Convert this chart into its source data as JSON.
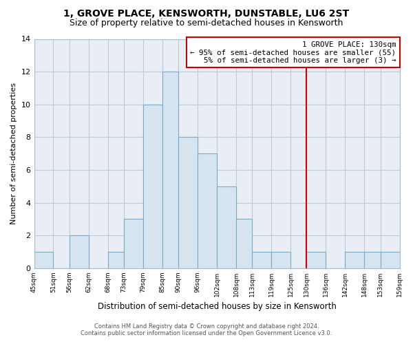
{
  "title": "1, GROVE PLACE, KENSWORTH, DUNSTABLE, LU6 2ST",
  "subtitle": "Size of property relative to semi-detached houses in Kensworth",
  "xlabel": "Distribution of semi-detached houses by size in Kensworth",
  "ylabel": "Number of semi-detached properties",
  "bin_edges": [
    45,
    51,
    56,
    62,
    68,
    73,
    79,
    85,
    90,
    96,
    102,
    108,
    113,
    119,
    125,
    130,
    136,
    142,
    148,
    153,
    159
  ],
  "bin_labels": [
    "45sqm",
    "51sqm",
    "56sqm",
    "62sqm",
    "68sqm",
    "73sqm",
    "79sqm",
    "85sqm",
    "90sqm",
    "96sqm",
    "102sqm",
    "108sqm",
    "113sqm",
    "119sqm",
    "125sqm",
    "130sqm",
    "136sqm",
    "142sqm",
    "148sqm",
    "153sqm",
    "159sqm"
  ],
  "counts": [
    1,
    0,
    2,
    0,
    1,
    3,
    10,
    12,
    8,
    7,
    5,
    3,
    1,
    1,
    0,
    1,
    0,
    1,
    1,
    1
  ],
  "bar_color": "#d6e4f0",
  "bar_edge_color": "#7aaac8",
  "vline_x": 130,
  "vline_color": "#cc0000",
  "annotation_title": "1 GROVE PLACE: 130sqm",
  "annotation_line1": "← 95% of semi-detached houses are smaller (55)",
  "annotation_line2": "5% of semi-detached houses are larger (3) →",
  "annotation_box_color": "#cc0000",
  "ylim": [
    0,
    14
  ],
  "yticks": [
    0,
    2,
    4,
    6,
    8,
    10,
    12,
    14
  ],
  "footer_line1": "Contains HM Land Registry data © Crown copyright and database right 2024.",
  "footer_line2": "Contains public sector information licensed under the Open Government Licence v3.0.",
  "plot_bg_color": "#e8eef4",
  "fig_bg_color": "#ffffff",
  "grid_color": "#c0c8d0",
  "title_fontsize": 10,
  "subtitle_fontsize": 9
}
